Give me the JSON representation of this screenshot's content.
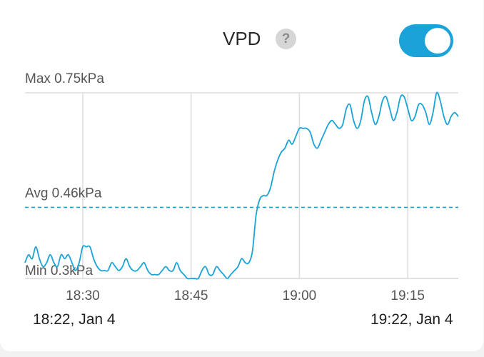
{
  "header": {
    "title": "VPD",
    "help_icon": "question-mark-icon",
    "toggle_on": true
  },
  "colors": {
    "accent": "#1aa3d8",
    "line": "#1aa3d8",
    "grid": "#dddddd"
  },
  "range": {
    "start": "18:22, Jan 4",
    "end": "19:22, Jan 4"
  },
  "chart_data": {
    "type": "line",
    "grid": true,
    "x_unit": "minutes",
    "xlim": [
      22,
      82
    ],
    "ylim": [
      0.28,
      0.75
    ],
    "tick_values": [
      30,
      45,
      60,
      75
    ],
    "tick_labels": [
      "18:30",
      "18:45",
      "19:00",
      "19:15"
    ],
    "ref_lines": [
      {
        "label": "Max 0.75kPa",
        "value": 0.75,
        "style": "solid"
      },
      {
        "label": "Avg 0.46kPa",
        "value": 0.46,
        "style": "dashed"
      },
      {
        "label": "Min 0.3kPa",
        "value": 0.28,
        "style": "solid"
      }
    ],
    "series": [
      {
        "x": [
          22.0,
          22.5,
          23.0,
          23.5,
          24.0,
          24.5,
          25.0,
          25.5,
          26.0,
          26.5,
          27.0,
          27.5,
          28.0,
          28.5,
          29.0,
          29.5,
          30.0,
          30.5,
          31.0,
          31.5,
          32.0,
          32.5,
          33.0,
          33.5,
          34.0,
          34.5,
          35.0,
          35.5,
          36.0,
          36.5,
          37.0,
          37.5,
          38.0,
          38.5,
          39.0,
          39.5,
          40.0,
          40.5,
          41.0,
          41.5,
          42.0,
          42.5,
          43.0,
          43.5,
          44.0,
          44.5,
          45.0,
          45.5,
          46.0,
          46.5,
          47.0,
          47.5,
          48.0,
          48.5,
          49.0,
          49.5,
          50.0,
          50.5,
          51.0,
          51.5,
          52.0,
          52.5,
          53.0,
          53.5,
          54.0,
          54.5,
          55.0,
          55.5,
          56.0,
          56.5,
          57.0,
          57.5,
          58.0,
          58.5,
          59.0,
          59.5,
          60.0,
          60.5,
          61.0,
          61.5,
          62.0,
          62.5,
          63.0,
          63.5,
          64.0,
          64.5,
          65.0,
          65.5,
          66.0,
          66.5,
          67.0,
          67.5,
          68.0,
          68.5,
          69.0,
          69.5,
          70.0,
          70.5,
          71.0,
          71.5,
          72.0,
          72.5,
          73.0,
          73.5,
          74.0,
          74.5,
          75.0,
          75.5,
          76.0,
          76.5,
          77.0,
          77.5,
          78.0,
          78.5,
          79.0,
          79.5,
          80.0,
          80.5,
          81.0,
          81.5,
          82.0
        ],
        "values": [
          0.32,
          0.34,
          0.33,
          0.36,
          0.33,
          0.31,
          0.32,
          0.34,
          0.32,
          0.31,
          0.34,
          0.33,
          0.34,
          0.32,
          0.3,
          0.32,
          0.36,
          0.36,
          0.36,
          0.33,
          0.31,
          0.3,
          0.3,
          0.3,
          0.32,
          0.31,
          0.3,
          0.31,
          0.33,
          0.31,
          0.3,
          0.3,
          0.31,
          0.32,
          0.3,
          0.29,
          0.29,
          0.29,
          0.3,
          0.31,
          0.3,
          0.3,
          0.32,
          0.3,
          0.29,
          0.28,
          0.28,
          0.28,
          0.28,
          0.3,
          0.31,
          0.29,
          0.29,
          0.31,
          0.3,
          0.29,
          0.28,
          0.29,
          0.3,
          0.31,
          0.33,
          0.32,
          0.32,
          0.35,
          0.44,
          0.48,
          0.49,
          0.49,
          0.51,
          0.55,
          0.58,
          0.6,
          0.61,
          0.63,
          0.62,
          0.64,
          0.66,
          0.66,
          0.66,
          0.65,
          0.62,
          0.61,
          0.63,
          0.65,
          0.67,
          0.68,
          0.67,
          0.66,
          0.67,
          0.71,
          0.72,
          0.68,
          0.66,
          0.68,
          0.73,
          0.74,
          0.7,
          0.67,
          0.69,
          0.73,
          0.74,
          0.71,
          0.68,
          0.7,
          0.74,
          0.74,
          0.71,
          0.68,
          0.69,
          0.72,
          0.72,
          0.7,
          0.67,
          0.7,
          0.75,
          0.73,
          0.69,
          0.67,
          0.69,
          0.7,
          0.69
        ]
      }
    ]
  }
}
